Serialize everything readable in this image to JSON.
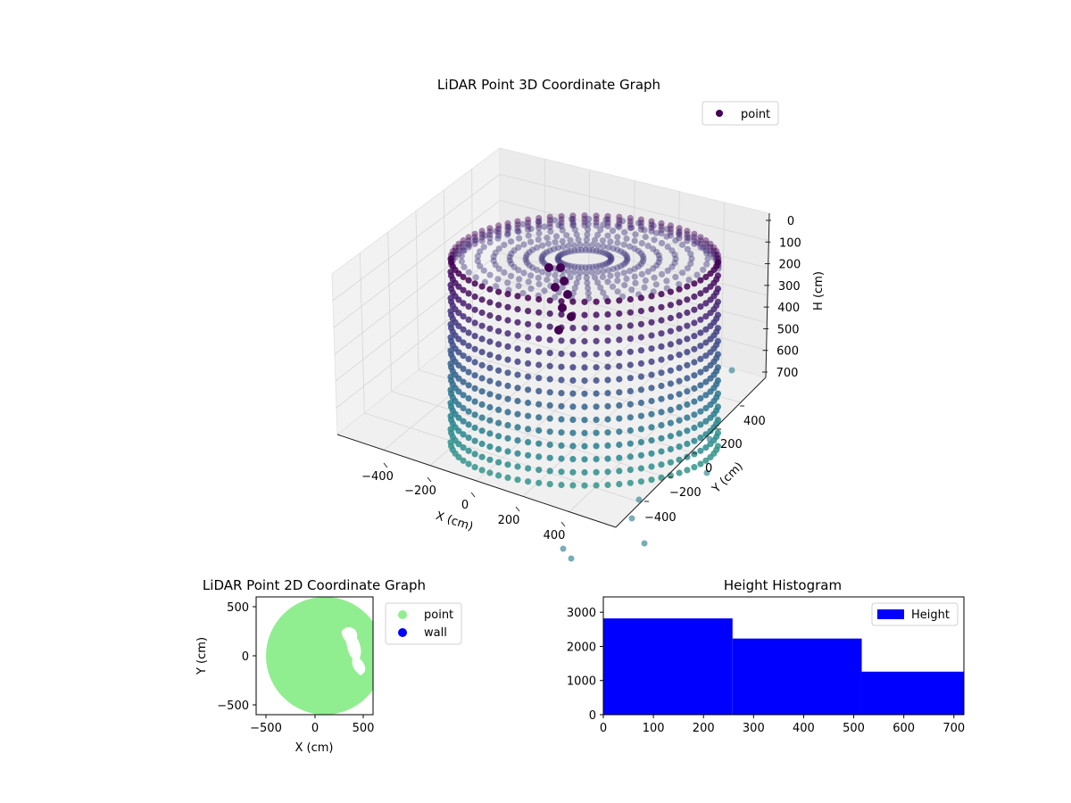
{
  "chart_data": [
    {
      "type": "scatter",
      "projection": "3d",
      "title": "LiDAR Point 3D Coordinate Graph",
      "xlabel": "X (cm)",
      "ylabel": "Y (cm)",
      "zlabel": "H (cm)",
      "xticks": [
        "−400",
        "−200",
        "0",
        "200",
        "400"
      ],
      "yticks": [
        "400",
        "200",
        "0",
        "−200",
        "−400"
      ],
      "zticks": [
        "0",
        "100",
        "200",
        "300",
        "400",
        "500",
        "600",
        "700"
      ],
      "xlim": [
        -600,
        600
      ],
      "ylim": [
        -600,
        600
      ],
      "zlim": [
        0,
        720
      ],
      "z_inverted": true,
      "legend": {
        "labels": [
          "point"
        ],
        "position": "top-right"
      },
      "colormap": "viridis",
      "marker_color": "#440154",
      "data_description_shape": "cylindrical wall of radius ~500 cm centered near (100, 0), heights 0-720 cm, plus floor points and an interior object",
      "sample_points": {
        "x": [
          600,
          566,
          466,
          316,
          141,
          -34,
          -183,
          -283,
          -316,
          -283,
          -183,
          -34,
          141,
          316,
          466,
          566
        ],
        "y": [
          0,
          191,
          354,
          462,
          500,
          462,
          354,
          191,
          0,
          -191,
          -354,
          -462,
          -500,
          -462,
          -354,
          -191
        ],
        "z": [
          0,
          0,
          0,
          0,
          0,
          0,
          0,
          0,
          0,
          0,
          0,
          0,
          0,
          0,
          0,
          0
        ]
      },
      "grid": true
    },
    {
      "type": "scatter",
      "title": "LiDAR Point 2D Coordinate Graph",
      "xlabel": "X (cm)",
      "ylabel": "Y (cm)",
      "xticks": [
        "−500",
        "0",
        "500"
      ],
      "yticks": [
        "500",
        "0",
        "−500"
      ],
      "xlim": [
        -620,
        600
      ],
      "ylim": [
        -600,
        600
      ],
      "legend": {
        "labels": [
          "point",
          "wall"
        ],
        "colors": [
          "#90ee90",
          "#0000ff"
        ],
        "position": "outside-right"
      },
      "point_color": "#90ee90",
      "wall_color": "#0000ff",
      "disk": {
        "center": [
          100,
          0
        ],
        "radius": 500
      }
    },
    {
      "type": "bar",
      "title": "Height Histogram",
      "xlabel": "",
      "ylabel": "",
      "bins": [
        [
          0,
          258
        ],
        [
          258,
          516
        ],
        [
          516,
          720
        ]
      ],
      "values": [
        2820,
        2230,
        1260
      ],
      "xlim": [
        0,
        720
      ],
      "ylim": [
        0,
        3450
      ],
      "xticks": [
        "0",
        "100",
        "200",
        "300",
        "400",
        "500",
        "600",
        "700"
      ],
      "yticks": [
        "0",
        "1000",
        "2000",
        "3000"
      ],
      "legend": {
        "labels": [
          "Height"
        ],
        "position": "top-right"
      },
      "bar_color": "#0000ff"
    }
  ]
}
